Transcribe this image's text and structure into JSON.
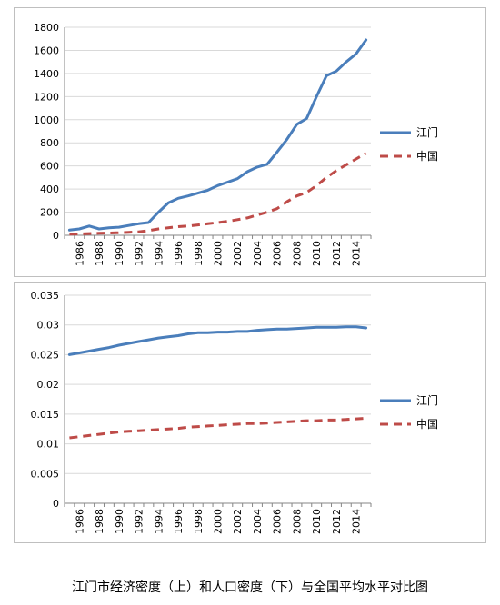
{
  "caption": "江门市经济密度（上）和人口密度（下）与全国平均水平对比图",
  "colors": {
    "jiangmen": "#4a7ebb",
    "china": "#be4b48",
    "axis": "#868686",
    "grid": "#d9d9d9"
  },
  "chart_data": [
    {
      "type": "line",
      "title": "",
      "xlabel": "",
      "ylabel": "",
      "x": [
        1985,
        1986,
        1987,
        1988,
        1989,
        1990,
        1991,
        1992,
        1993,
        1994,
        1995,
        1996,
        1997,
        1998,
        1999,
        2000,
        2001,
        2002,
        2003,
        2004,
        2005,
        2006,
        2007,
        2008,
        2009,
        2010,
        2011,
        2012,
        2013,
        2014,
        2015
      ],
      "xticks": [
        "1986",
        "1988",
        "1990",
        "1992",
        "1994",
        "1996",
        "1998",
        "2000",
        "2002",
        "2004",
        "2006",
        "2008",
        "2010",
        "2012",
        "2014"
      ],
      "ylim": [
        0,
        1800
      ],
      "yticks": [
        "0",
        "200",
        "400",
        "600",
        "800",
        "1000",
        "1200",
        "1400",
        "1600",
        "1800"
      ],
      "grid": true,
      "legend": "right",
      "series": [
        {
          "name": "江门",
          "style": "solid",
          "values": [
            45,
            55,
            80,
            55,
            65,
            70,
            85,
            100,
            110,
            200,
            280,
            320,
            340,
            365,
            390,
            430,
            460,
            490,
            550,
            590,
            615,
            720,
            830,
            960,
            1010,
            1200,
            1380,
            1420,
            1500,
            1570,
            1690
          ]
        },
        {
          "name": "中国",
          "style": "dashed",
          "values": [
            10,
            12,
            15,
            17,
            20,
            22,
            26,
            30,
            40,
            55,
            65,
            75,
            80,
            90,
            100,
            110,
            120,
            135,
            150,
            175,
            200,
            230,
            290,
            340,
            370,
            430,
            500,
            560,
            610,
            660,
            710
          ]
        }
      ]
    },
    {
      "type": "line",
      "title": "",
      "xlabel": "",
      "ylabel": "",
      "x": [
        1985,
        1986,
        1987,
        1988,
        1989,
        1990,
        1991,
        1992,
        1993,
        1994,
        1995,
        1996,
        1997,
        1998,
        1999,
        2000,
        2001,
        2002,
        2003,
        2004,
        2005,
        2006,
        2007,
        2008,
        2009,
        2010,
        2011,
        2012,
        2013,
        2014,
        2015
      ],
      "xticks": [
        "1986",
        "1988",
        "1990",
        "1992",
        "1994",
        "1996",
        "1998",
        "2000",
        "2002",
        "2004",
        "2006",
        "2008",
        "2010",
        "2012",
        "2014"
      ],
      "ylim": [
        0,
        0.035
      ],
      "yticks": [
        "0",
        "0.005",
        "0.01",
        "0.015",
        "0.02",
        "0.025",
        "0.03",
        "0.035"
      ],
      "grid": true,
      "legend": "right",
      "series": [
        {
          "name": "江门",
          "style": "solid",
          "values": [
            0.025,
            0.0253,
            0.0256,
            0.0259,
            0.0262,
            0.0266,
            0.0269,
            0.0272,
            0.0275,
            0.0278,
            0.028,
            0.0282,
            0.0285,
            0.0287,
            0.0287,
            0.0288,
            0.0288,
            0.0289,
            0.0289,
            0.0291,
            0.0292,
            0.0293,
            0.0293,
            0.0294,
            0.0295,
            0.0296,
            0.0296,
            0.0296,
            0.0297,
            0.0297,
            0.0295
          ]
        },
        {
          "name": "中国",
          "style": "dashed",
          "values": [
            0.011,
            0.0112,
            0.0114,
            0.0116,
            0.0118,
            0.012,
            0.0121,
            0.0122,
            0.0123,
            0.0124,
            0.0125,
            0.0126,
            0.0128,
            0.0129,
            0.013,
            0.0131,
            0.0132,
            0.0133,
            0.0134,
            0.0134,
            0.0135,
            0.0136,
            0.0137,
            0.0138,
            0.0139,
            0.0139,
            0.014,
            0.014,
            0.0141,
            0.0142,
            0.0143
          ]
        }
      ]
    }
  ]
}
